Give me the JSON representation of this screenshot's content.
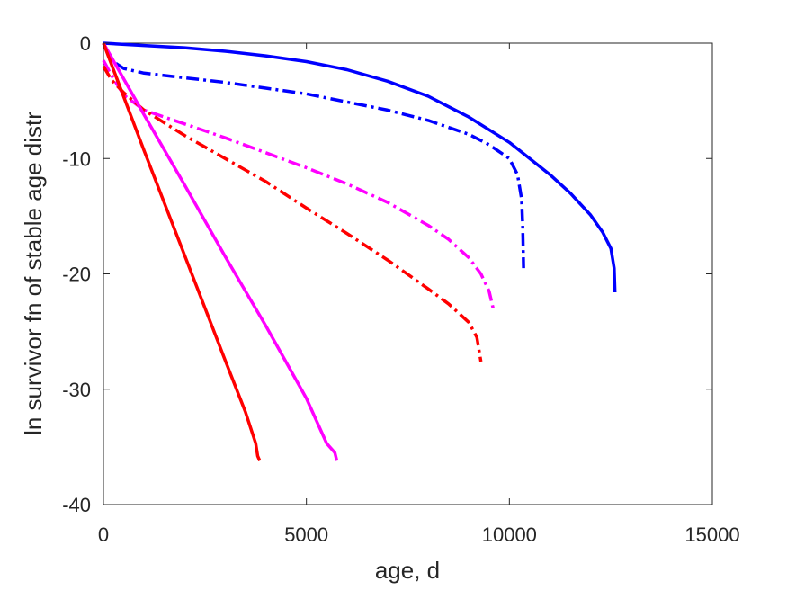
{
  "chart_data": {
    "type": "line",
    "title": "",
    "xlabel": "age, d",
    "ylabel": "ln survivor fn of stable age distr",
    "xlim": [
      0,
      15000
    ],
    "ylim": [
      -40,
      0
    ],
    "xticks": [
      0,
      5000,
      10000,
      15000
    ],
    "xtick_labels": [
      "0",
      "5000",
      "10000",
      "15000"
    ],
    "yticks": [
      0,
      -10,
      -20,
      -30,
      -40
    ],
    "ytick_labels": [
      "0",
      "-10",
      "-20",
      "-30",
      "-40"
    ],
    "grid": false,
    "legend": "none",
    "series": [
      {
        "color": "#0000ff",
        "style": "solid",
        "x": [
          0,
          1000,
          2000,
          3000,
          4000,
          5000,
          6000,
          7000,
          8000,
          9000,
          10000,
          11000,
          11500,
          12000,
          12300,
          12500,
          12580,
          12600
        ],
        "y": [
          0,
          -0.2,
          -0.4,
          -0.7,
          -1.1,
          -1.6,
          -2.3,
          -3.3,
          -4.6,
          -6.4,
          -8.6,
          -11.4,
          -13.0,
          -14.9,
          -16.4,
          -17.8,
          -19.5,
          -21.6
        ]
      },
      {
        "color": "#0000ff",
        "style": "dashdot",
        "x": [
          0,
          200,
          500,
          1000,
          2000,
          3000,
          4000,
          5000,
          6000,
          7000,
          8000,
          9000,
          9500,
          10000,
          10200,
          10300,
          10330,
          10350
        ],
        "y": [
          0,
          -1.5,
          -2.2,
          -2.6,
          -3.0,
          -3.4,
          -3.9,
          -4.4,
          -5.1,
          -5.8,
          -6.7,
          -7.9,
          -8.8,
          -10.0,
          -11.4,
          -13.5,
          -16.0,
          -19.5
        ]
      },
      {
        "color": "#ff00ff",
        "style": "dashdot",
        "x": [
          0,
          200,
          500,
          1000,
          2000,
          3000,
          4000,
          5000,
          6000,
          7000,
          8000,
          8500,
          9000,
          9300,
          9500,
          9600
        ],
        "y": [
          -1.5,
          -2.8,
          -4.5,
          -5.8,
          -7.0,
          -8.2,
          -9.5,
          -10.8,
          -12.2,
          -13.8,
          -15.8,
          -17.0,
          -18.6,
          -20.0,
          -21.5,
          -23.0
        ]
      },
      {
        "color": "#ff0000",
        "style": "dashdot",
        "x": [
          0,
          200,
          500,
          1000,
          2000,
          3000,
          4000,
          5000,
          6000,
          7000,
          8000,
          8500,
          9000,
          9200,
          9300
        ],
        "y": [
          -2.0,
          -3.2,
          -4.3,
          -5.8,
          -8.0,
          -10.0,
          -12.0,
          -14.3,
          -16.5,
          -18.8,
          -21.3,
          -22.6,
          -24.2,
          -25.5,
          -27.6
        ]
      },
      {
        "color": "#ff00ff",
        "style": "solid",
        "x": [
          0,
          1000,
          2000,
          3000,
          4000,
          5000,
          5500,
          5700,
          5750
        ],
        "y": [
          0,
          -6.2,
          -12.3,
          -18.5,
          -24.5,
          -30.8,
          -34.7,
          -35.5,
          -36.2
        ]
      },
      {
        "color": "#ff0000",
        "style": "solid",
        "x": [
          0,
          1000,
          2000,
          3000,
          3500,
          3750,
          3800,
          3850
        ],
        "y": [
          0,
          -9.3,
          -18.4,
          -27.5,
          -32.0,
          -34.7,
          -35.8,
          -36.2
        ]
      }
    ]
  }
}
